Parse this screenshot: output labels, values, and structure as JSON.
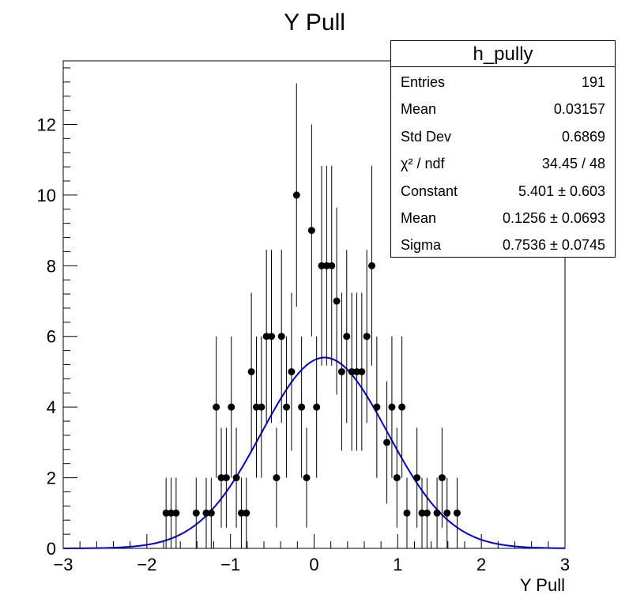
{
  "chart_data": {
    "type": "scatter",
    "title": "Y Pull",
    "xlabel": "Y Pull",
    "ylabel": "",
    "xlim": [
      -3,
      3
    ],
    "ylim": [
      0,
      13.8
    ],
    "x_ticks": [
      "−3",
      "−2",
      "−1",
      "0",
      "1",
      "2",
      "3"
    ],
    "y_ticks": [
      "0",
      "2",
      "4",
      "6",
      "8",
      "10",
      "12"
    ],
    "grid": false,
    "bin_width": 0.06,
    "points": [
      {
        "x": -1.77,
        "y": 1
      },
      {
        "x": -1.71,
        "y": 1
      },
      {
        "x": -1.65,
        "y": 1
      },
      {
        "x": -1.41,
        "y": 1
      },
      {
        "x": -1.29,
        "y": 1
      },
      {
        "x": -1.23,
        "y": 1
      },
      {
        "x": -1.17,
        "y": 4
      },
      {
        "x": -1.11,
        "y": 2
      },
      {
        "x": -1.05,
        "y": 2
      },
      {
        "x": -0.99,
        "y": 4
      },
      {
        "x": -0.93,
        "y": 2
      },
      {
        "x": -0.87,
        "y": 1
      },
      {
        "x": -0.81,
        "y": 1
      },
      {
        "x": -0.75,
        "y": 5
      },
      {
        "x": -0.69,
        "y": 4
      },
      {
        "x": -0.63,
        "y": 4
      },
      {
        "x": -0.57,
        "y": 6
      },
      {
        "x": -0.51,
        "y": 6
      },
      {
        "x": -0.45,
        "y": 2
      },
      {
        "x": -0.39,
        "y": 6
      },
      {
        "x": -0.33,
        "y": 4
      },
      {
        "x": -0.27,
        "y": 5
      },
      {
        "x": -0.21,
        "y": 10
      },
      {
        "x": -0.15,
        "y": 4
      },
      {
        "x": -0.09,
        "y": 2
      },
      {
        "x": -0.03,
        "y": 9
      },
      {
        "x": 0.03,
        "y": 4
      },
      {
        "x": 0.09,
        "y": 8
      },
      {
        "x": 0.15,
        "y": 8
      },
      {
        "x": 0.21,
        "y": 8
      },
      {
        "x": 0.27,
        "y": 7
      },
      {
        "x": 0.33,
        "y": 5
      },
      {
        "x": 0.39,
        "y": 6
      },
      {
        "x": 0.45,
        "y": 5
      },
      {
        "x": 0.51,
        "y": 5
      },
      {
        "x": 0.57,
        "y": 5
      },
      {
        "x": 0.63,
        "y": 6
      },
      {
        "x": 0.69,
        "y": 8
      },
      {
        "x": 0.75,
        "y": 4
      },
      {
        "x": 0.87,
        "y": 3
      },
      {
        "x": 0.93,
        "y": 4
      },
      {
        "x": 0.99,
        "y": 2
      },
      {
        "x": 1.05,
        "y": 4
      },
      {
        "x": 1.11,
        "y": 1
      },
      {
        "x": 1.23,
        "y": 2
      },
      {
        "x": 1.29,
        "y": 1
      },
      {
        "x": 1.35,
        "y": 1
      },
      {
        "x": 1.47,
        "y": 1
      },
      {
        "x": 1.53,
        "y": 2
      },
      {
        "x": 1.59,
        "y": 1
      },
      {
        "x": 1.71,
        "y": 1
      }
    ],
    "fit": {
      "constant": 5.401,
      "mean": 0.1256,
      "sigma": 0.7536,
      "color": "#0000cc"
    },
    "marker_color": "#000000"
  },
  "stats": {
    "title": "h_pully",
    "rows": [
      {
        "label": "Entries",
        "value": "191"
      },
      {
        "label": "Mean",
        "value": "0.03157"
      },
      {
        "label": "Std Dev",
        "value": "0.6869"
      },
      {
        "label": "χ² / ndf",
        "value": "34.45 / 48"
      },
      {
        "label": "Constant",
        "value": "5.401 ± 0.603"
      },
      {
        "label": "Mean",
        "value": "0.1256 ± 0.0693"
      },
      {
        "label": "Sigma",
        "value": "0.7536 ± 0.0745"
      }
    ]
  }
}
